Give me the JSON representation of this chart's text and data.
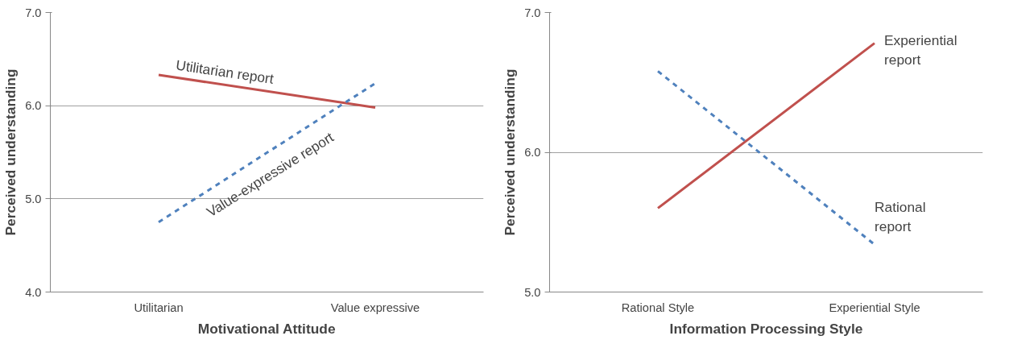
{
  "chart_data": [
    {
      "type": "line",
      "xlabel": "Motivational Attitude",
      "ylabel": "Perceived understanding",
      "categories": [
        "Utilitarian",
        "Value expressive"
      ],
      "ylim": [
        4,
        7
      ],
      "yticks": [
        {
          "value": 4,
          "label": "4.0"
        },
        {
          "value": 5,
          "label": "5.0"
        },
        {
          "value": 6,
          "label": "6.0"
        },
        {
          "value": 7,
          "label": "7.0"
        }
      ],
      "grid": "y",
      "marker": "none",
      "series": [
        {
          "name": "Utilitarian report",
          "color": "#c0504d",
          "values": [
            6.33,
            5.98
          ],
          "line_style": "solid"
        },
        {
          "name": "Value-expressive report",
          "color": "#4f81bd",
          "values": [
            4.75,
            6.24
          ],
          "line_style": "dashed"
        }
      ]
    },
    {
      "type": "line",
      "xlabel": "Information Processing Style",
      "ylabel": "Perceived understanding",
      "categories": [
        "Rational Style",
        "Experiential Style"
      ],
      "ylim": [
        5,
        7
      ],
      "yticks": [
        {
          "value": 5,
          "label": "5.0"
        },
        {
          "value": 6,
          "label": "6.0"
        },
        {
          "value": 7,
          "label": "7.0"
        }
      ],
      "grid": "y",
      "marker": "none",
      "series": [
        {
          "name": "Experiential report",
          "color": "#c0504d",
          "values": [
            5.6,
            6.78
          ],
          "line_style": "solid"
        },
        {
          "name": "Rational report",
          "color": "#4f81bd",
          "values": [
            6.58,
            5.34
          ],
          "line_style": "dashed"
        }
      ]
    }
  ]
}
